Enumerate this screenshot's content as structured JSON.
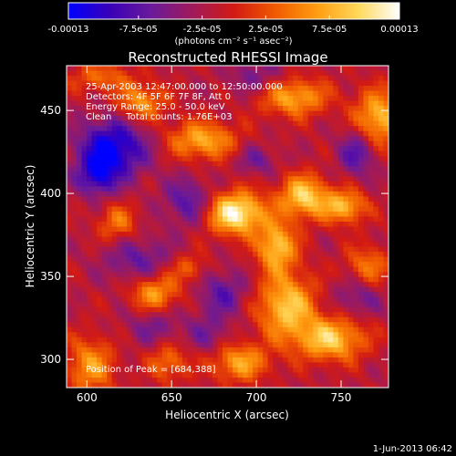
{
  "chart_data": {
    "type": "heatmap",
    "title": "Reconstructed RHESSI Image",
    "xlabel": "Heliocentric X (arcsec)",
    "ylabel": "Heliocentric Y (arcsec)",
    "xlim": [
      588,
      778
    ],
    "ylim": [
      283,
      477
    ],
    "x_ticks": [
      600,
      650,
      700,
      750
    ],
    "y_ticks": [
      300,
      350,
      400,
      450
    ],
    "colorbar": {
      "range": [
        -0.00013,
        0.00013
      ],
      "ticks": [
        "-0.00013",
        "-7.5e-05",
        "-2.5e-05",
        "2.5e-05",
        "7.5e-05",
        "0.00013"
      ],
      "tick_values": [
        -0.00013,
        -7.5e-05,
        -2.5e-05,
        2.5e-05,
        7.5e-05,
        0.00013
      ],
      "unit_label": "(photons cm⁻² s⁻¹ asec⁻²)",
      "colormap": [
        "#0000ff",
        "#3a00b8",
        "#6a1a9a",
        "#a01a5a",
        "#d21a14",
        "#f05a00",
        "#ff9c10",
        "#ffd85a",
        "#ffffff"
      ]
    },
    "annotations": [
      "25-Apr-2003 12:47:00.000 to 12:50:00.000",
      "Detectors: 4F 5F 6F 7F 8F, Att 0",
      "Energy Range: 25.0 - 50.0 keV",
      "Clean     Total counts: 1.76E+03"
    ],
    "peak_label": "Position of Peak = [684,388]",
    "peak": [
      684,
      388
    ],
    "sources": [
      {
        "x": 688,
        "y": 388,
        "sx": 12,
        "sy": 9,
        "amp": 1.25
      },
      {
        "x": 712,
        "y": 368,
        "sx": 8,
        "sy": 10,
        "amp": 0.95
      },
      {
        "x": 728,
        "y": 398,
        "sx": 10,
        "sy": 9,
        "amp": 1.0
      },
      {
        "x": 752,
        "y": 392,
        "sx": 9,
        "sy": 7,
        "amp": 0.85
      },
      {
        "x": 718,
        "y": 332,
        "sx": 12,
        "sy": 14,
        "amp": 0.95
      },
      {
        "x": 690,
        "y": 298,
        "sx": 12,
        "sy": 8,
        "amp": 0.75
      },
      {
        "x": 744,
        "y": 312,
        "sx": 14,
        "sy": 9,
        "amp": 0.95
      },
      {
        "x": 772,
        "y": 445,
        "sx": 10,
        "sy": 12,
        "amp": 0.9
      },
      {
        "x": 722,
        "y": 458,
        "sx": 14,
        "sy": 8,
        "amp": 0.8
      },
      {
        "x": 668,
        "y": 432,
        "sx": 14,
        "sy": 8,
        "amp": 0.8
      },
      {
        "x": 632,
        "y": 455,
        "sx": 10,
        "sy": 8,
        "amp": 0.7
      },
      {
        "x": 608,
        "y": 470,
        "sx": 12,
        "sy": 6,
        "amp": 0.5
      },
      {
        "x": 618,
        "y": 382,
        "sx": 8,
        "sy": 8,
        "amp": 0.55
      },
      {
        "x": 640,
        "y": 340,
        "sx": 10,
        "sy": 8,
        "amp": 0.75
      },
      {
        "x": 602,
        "y": 296,
        "sx": 10,
        "sy": 12,
        "amp": 0.7
      },
      {
        "x": 648,
        "y": 298,
        "sx": 8,
        "sy": 8,
        "amp": 0.55
      },
      {
        "x": 660,
        "y": 355,
        "sx": 8,
        "sy": 6,
        "amp": 0.45
      },
      {
        "x": 766,
        "y": 356,
        "sx": 9,
        "sy": 9,
        "amp": 0.55
      },
      {
        "x": 615,
        "y": 427,
        "sx": 14,
        "sy": 12,
        "amp": -1.0
      },
      {
        "x": 606,
        "y": 410,
        "sx": 8,
        "sy": 8,
        "amp": -0.7
      },
      {
        "x": 660,
        "y": 395,
        "sx": 10,
        "sy": 10,
        "amp": -0.55
      },
      {
        "x": 630,
        "y": 360,
        "sx": 14,
        "sy": 10,
        "amp": -0.45
      },
      {
        "x": 680,
        "y": 340,
        "sx": 10,
        "sy": 10,
        "amp": -0.5
      },
      {
        "x": 700,
        "y": 420,
        "sx": 8,
        "sy": 6,
        "amp": -0.4
      },
      {
        "x": 760,
        "y": 425,
        "sx": 8,
        "sy": 10,
        "amp": -0.6
      },
      {
        "x": 700,
        "y": 470,
        "sx": 12,
        "sy": 8,
        "amp": -0.35
      },
      {
        "x": 640,
        "y": 320,
        "sx": 12,
        "sy": 8,
        "amp": -0.35
      },
      {
        "x": 760,
        "y": 338,
        "sx": 10,
        "sy": 8,
        "amp": -0.4
      },
      {
        "x": 672,
        "y": 315,
        "sx": 8,
        "sy": 8,
        "amp": -0.35
      }
    ],
    "grid": false
  },
  "footer": {
    "date": "1-Jun-2013 06:42"
  }
}
